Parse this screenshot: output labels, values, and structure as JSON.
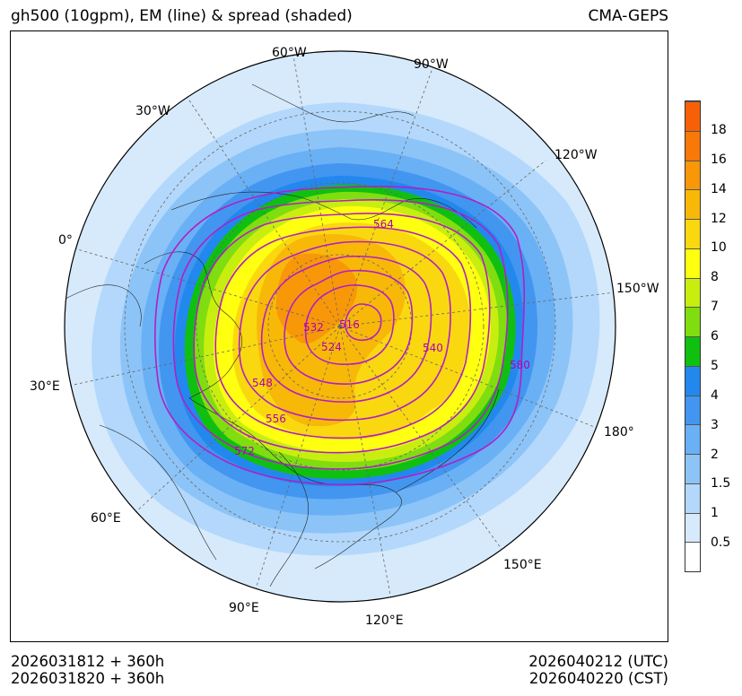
{
  "header": {
    "title": "gh500 (10gpm), EM (line) & spread (shaded)",
    "model": "CMA-GEPS"
  },
  "footer": {
    "init_utc": "2026031812 + 360h",
    "init_cst": "2026031820 + 360h",
    "valid_utc": "2026040212 (UTC)",
    "valid_cst": "2026040220 (CST)"
  },
  "map": {
    "projection": "north-polar-stereographic",
    "longitude_labels": [
      "60°W",
      "90°W",
      "30°W",
      "120°W",
      "0°",
      "150°W",
      "30°E",
      "180°",
      "60°E",
      "150°E",
      "90°E",
      "120°E"
    ],
    "contour_labels": [
      "564",
      "532",
      "516",
      "524",
      "540",
      "548",
      "556",
      "580",
      "572"
    ],
    "contour_color": "#b21fc4",
    "contour_values_gpm": [
      516,
      524,
      532,
      540,
      548,
      556,
      564,
      572,
      580
    ]
  },
  "colorbar": {
    "labels": [
      "0.5",
      "1",
      "1.5",
      "2",
      "3",
      "4",
      "5",
      "6",
      "7",
      "8",
      "10",
      "12",
      "14",
      "16",
      "18"
    ],
    "colors": [
      "#ffffff",
      "#d6eafc",
      "#b3d8fb",
      "#8cc4f8",
      "#6ab0f5",
      "#4296f0",
      "#2288ee",
      "#10c010",
      "#80dd10",
      "#c8ee10",
      "#ffff10",
      "#fad810",
      "#f8b808",
      "#f89808",
      "#f87808",
      "#f86008"
    ]
  }
}
